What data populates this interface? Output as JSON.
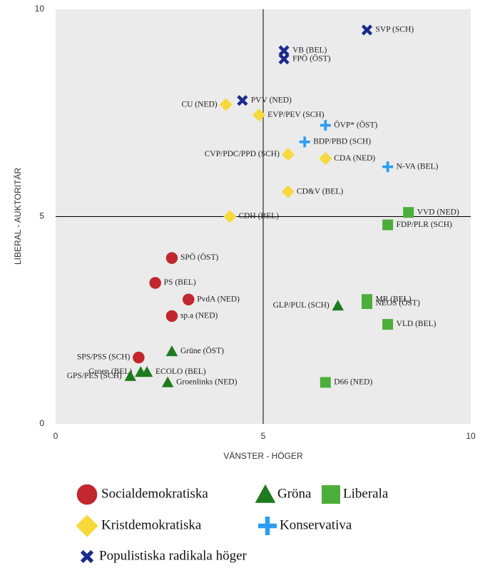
{
  "chart_data": {
    "type": "scatter",
    "x_label": "VÄNSTER - HÖGER",
    "y_label": "LIBERAL - AUKTORITÄR",
    "xlim": [
      0,
      10
    ],
    "ylim": [
      0,
      10
    ],
    "xticks": [
      0,
      5,
      10
    ],
    "yticks": [
      0,
      5,
      10
    ],
    "hlines": [
      5
    ],
    "vlines": [
      5
    ],
    "series": [
      {
        "name": "Socialdemokratiska",
        "color": "#c1272d",
        "marker": "circle",
        "x": [
          2.8,
          2.4,
          3.2,
          2.8,
          2.0
        ],
        "y": [
          4.0,
          3.4,
          3.0,
          2.6,
          1.6
        ],
        "labels": [
          "SPÖ (ÖST)",
          "PS (BEL)",
          "PvdA (NED)",
          "sp.a (NED)",
          "SPS/PSS (SCH)"
        ]
      },
      {
        "name": "Gröna",
        "color": "#1e7a1e",
        "marker": "triangle",
        "x": [
          2.8,
          2.05,
          2.2,
          1.8,
          2.7,
          6.8
        ],
        "y": [
          1.75,
          1.25,
          1.25,
          1.15,
          1.0,
          2.85
        ],
        "labels": [
          "Grüne (ÖST)",
          "Groen (BEL)",
          "ECOLO (BEL)",
          "GPS/PES (SCH)",
          "Groenlinks (NED)",
          "GLP/PUL (SCH)"
        ]
      },
      {
        "name": "Liberala",
        "color": "#4cae3a",
        "marker": "square",
        "x": [
          8.5,
          8.0,
          7.5,
          7.5,
          8.0,
          6.5
        ],
        "y": [
          5.1,
          4.8,
          3.0,
          2.9,
          2.4,
          1.0
        ],
        "labels": [
          "VVD (NED)",
          "FDP/PLR (SCH)",
          "MR (BEL)",
          "NEOS (ÖST)",
          "VLD (BEL)",
          "D66 (NED)"
        ]
      },
      {
        "name": "Kristdemokratiska",
        "color": "#f7d93c",
        "marker": "diamond",
        "x": [
          4.1,
          4.9,
          5.6,
          6.5,
          5.6,
          4.2
        ],
        "y": [
          7.7,
          7.45,
          6.5,
          6.4,
          5.6,
          5.0
        ],
        "labels": [
          "CU (NED)",
          "EVP/PEV (SCH)",
          "CVP/PDC/PPD (SCH)",
          "CDA (NED)",
          "CD&V (BEL)",
          "CDH (BEL)"
        ]
      },
      {
        "name": "Konservativa",
        "color": "#2c9df2",
        "marker": "plus",
        "x": [
          6.5,
          6.0,
          8.0
        ],
        "y": [
          7.2,
          6.8,
          6.2
        ],
        "labels": [
          "ÖVP* (ÖST)",
          "BDP/PBD (SCH)",
          "N-VA (BEL)"
        ]
      },
      {
        "name": "Populistiska radikala höger",
        "color": "#1b2a8e",
        "marker": "x",
        "x": [
          7.5,
          5.5,
          5.5,
          4.5
        ],
        "y": [
          9.5,
          9.0,
          8.8,
          7.8
        ],
        "labels": [
          "SVP (SCH)",
          "VB (BEL)",
          "FPÖ (ÖST)",
          "PVV (NED)"
        ]
      }
    ]
  }
}
